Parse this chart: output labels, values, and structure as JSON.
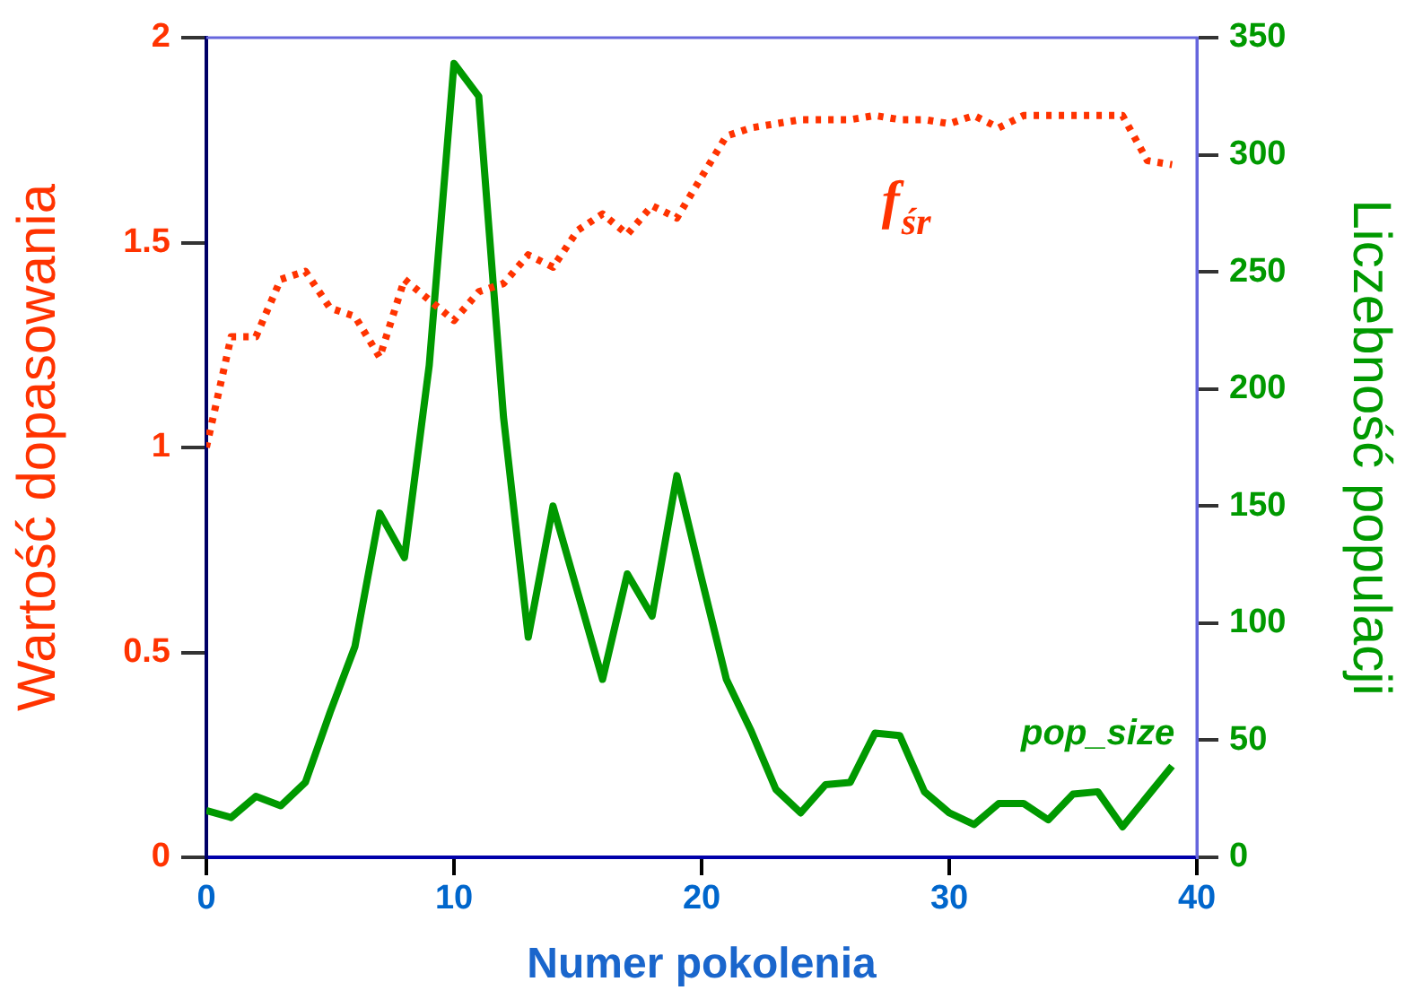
{
  "chart_data": {
    "type": "line",
    "xlabel": "Numer pokolenia",
    "ylabel": "Wartość dopasowania",
    "y2label": "Liczebność populacji",
    "x": [
      0,
      1,
      2,
      3,
      4,
      5,
      6,
      7,
      8,
      9,
      10,
      11,
      12,
      13,
      14,
      15,
      16,
      17,
      18,
      19,
      20,
      21,
      22,
      23,
      24,
      25,
      26,
      27,
      28,
      29,
      30,
      31,
      32,
      33,
      34,
      35,
      36,
      37,
      38,
      39
    ],
    "series": [
      {
        "name": "f$_{śr}$",
        "color": "#ff3300",
        "line_style": "dotted",
        "values": [
          1.0,
          1.27,
          1.27,
          1.41,
          1.43,
          1.34,
          1.32,
          1.22,
          1.41,
          1.36,
          1.31,
          1.38,
          1.4,
          1.47,
          1.44,
          1.53,
          1.57,
          1.52,
          1.59,
          1.56,
          1.66,
          1.76,
          1.78,
          1.79,
          1.8,
          1.8,
          1.8,
          1.81,
          1.8,
          1.8,
          1.79,
          1.81,
          1.78,
          1.81,
          1.81,
          1.81,
          1.81,
          1.81,
          1.7,
          1.69
        ]
      },
      {
        "name": "pop_size",
        "color": "#009900",
        "line_style": "solid",
        "axis": "y2",
        "values": [
          20,
          17,
          26,
          22,
          32,
          62,
          90,
          147,
          128,
          210,
          339,
          325,
          188,
          94,
          150,
          113,
          76,
          121,
          103,
          163,
          119,
          76,
          54,
          29,
          19,
          31,
          32,
          53,
          52,
          28,
          19,
          14,
          23,
          23,
          16,
          27,
          28,
          13,
          26,
          39
        ]
      }
    ],
    "xlim": [
      0,
      40
    ],
    "xticks": [
      0,
      10,
      20,
      30,
      40
    ],
    "ylim": [
      0,
      2
    ],
    "yticks": [
      0,
      0.5,
      1,
      1.5,
      2
    ],
    "y2lim": [
      0,
      350
    ],
    "y2ticks": [
      0,
      50,
      100,
      150,
      200,
      250,
      300,
      350
    ],
    "grid": false,
    "legend": false,
    "marker": "none"
  }
}
